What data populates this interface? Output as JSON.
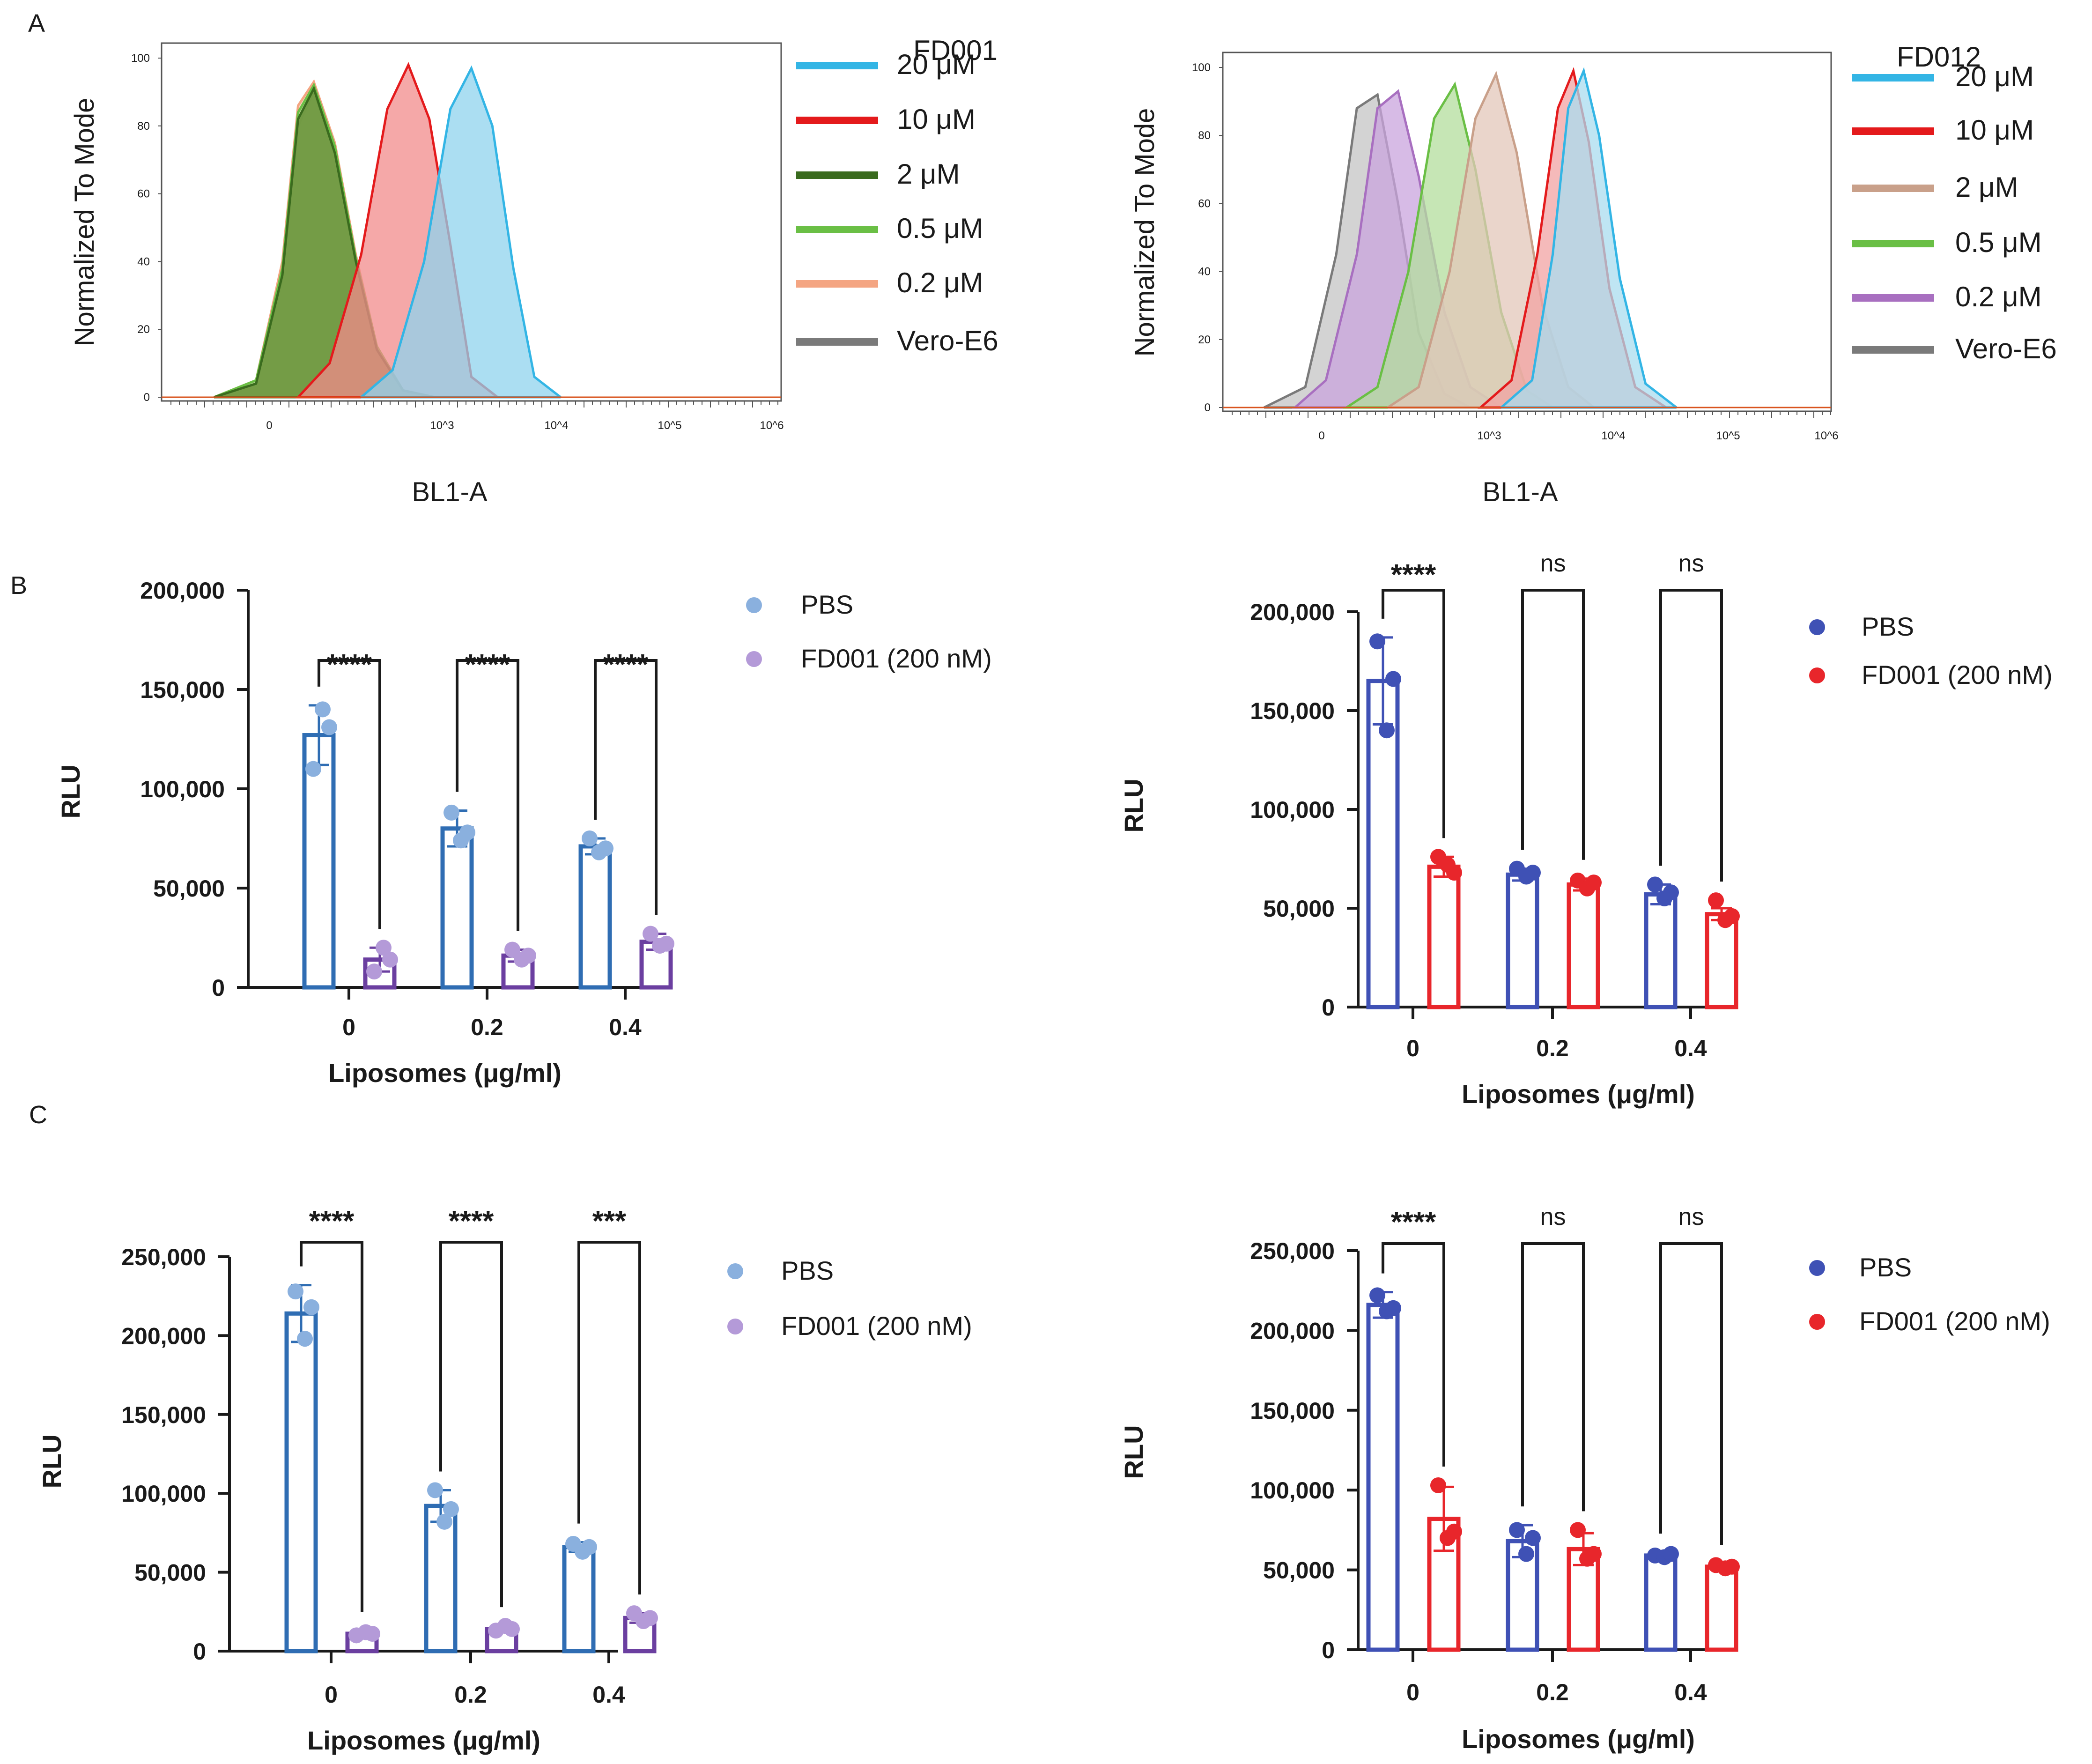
{
  "panel_labels": [
    "A",
    "B",
    "C"
  ],
  "chart_data": [
    {
      "id": "A-left",
      "type": "area",
      "title": "FD001",
      "xlabel": "BL1-A",
      "ylabel": "Normalized To Mode",
      "xscale": "biexponential",
      "xticks": [
        "0",
        "10^3",
        "10^4",
        "10^5",
        "10^6"
      ],
      "yticks": [
        "0",
        "20",
        "40",
        "60",
        "80",
        "100"
      ],
      "ylim": [
        0,
        100
      ],
      "series": [
        {
          "name": "Vero-E6",
          "color": "#7a7a7a",
          "fill": "#b8b8b8",
          "x": [
            -0.8,
            -0.4,
            -0.15,
            0.0,
            0.15,
            0.35,
            0.55,
            0.75,
            1.0,
            1.3
          ],
          "y": [
            0,
            4,
            35,
            80,
            90,
            72,
            40,
            14,
            2,
            0
          ]
        },
        {
          "name": "0.2 μM",
          "color": "#f4a582",
          "fill": "#f7c9a8",
          "x": [
            -0.8,
            -0.4,
            -0.15,
            0.0,
            0.15,
            0.35,
            0.55,
            0.75,
            1.0,
            1.3
          ],
          "y": [
            0,
            5,
            40,
            86,
            93,
            75,
            42,
            15,
            2,
            0
          ]
        },
        {
          "name": "0.5 μM",
          "color": "#6abf45",
          "fill": "#9fd483",
          "x": [
            -0.8,
            -0.4,
            -0.15,
            0.0,
            0.15,
            0.35,
            0.55,
            0.75,
            1.0,
            1.3
          ],
          "y": [
            0,
            5,
            38,
            84,
            92,
            74,
            41,
            15,
            2,
            0
          ]
        },
        {
          "name": "2 μM",
          "color": "#3a6b1e",
          "fill": "#5f8a2e",
          "x": [
            -0.8,
            -0.4,
            -0.15,
            0.0,
            0.15,
            0.35,
            0.55,
            0.75,
            1.0,
            1.3
          ],
          "y": [
            0,
            4,
            36,
            82,
            91,
            72,
            40,
            14,
            2,
            0
          ]
        },
        {
          "name": "10 μM",
          "color": "#e41a1c",
          "fill": "#f28b8b",
          "x": [
            0.0,
            0.3,
            0.6,
            0.85,
            1.05,
            1.25,
            1.45,
            1.65,
            1.9
          ],
          "y": [
            0,
            10,
            42,
            85,
            98,
            82,
            45,
            6,
            0
          ]
        },
        {
          "name": "20 μM",
          "color": "#33b5e5",
          "fill": "#8fd3ee",
          "x": [
            0.6,
            0.9,
            1.2,
            1.45,
            1.65,
            1.85,
            2.05,
            2.25,
            2.5
          ],
          "y": [
            0,
            8,
            40,
            85,
            97,
            80,
            38,
            6,
            0
          ]
        }
      ]
    },
    {
      "id": "A-right",
      "type": "area",
      "title": "FD012",
      "xlabel": "BL1-A",
      "ylabel": "Normalized To Mode",
      "xscale": "biexponential",
      "xticks": [
        "0",
        "10^3",
        "10^4",
        "10^5",
        "10^6"
      ],
      "yticks": [
        "0",
        "20",
        "40",
        "60",
        "80",
        "100"
      ],
      "ylim": [
        0,
        100
      ],
      "series": [
        {
          "name": "Vero-E6",
          "color": "#7a7a7a",
          "fill": "#c4c4c4",
          "x": [
            -0.9,
            -0.5,
            -0.2,
            0.0,
            0.2,
            0.4,
            0.6,
            0.85,
            1.1
          ],
          "y": [
            0,
            6,
            45,
            88,
            92,
            60,
            22,
            4,
            0
          ]
        },
        {
          "name": "0.2 μM",
          "color": "#a86fc0",
          "fill": "#c9a4dd",
          "x": [
            -0.6,
            -0.3,
            0.0,
            0.2,
            0.4,
            0.6,
            0.85,
            1.1,
            1.4
          ],
          "y": [
            0,
            8,
            45,
            88,
            93,
            68,
            28,
            6,
            0
          ]
        },
        {
          "name": "0.5 μM",
          "color": "#6abf45",
          "fill": "#b3dd9c",
          "x": [
            -0.1,
            0.2,
            0.5,
            0.75,
            0.95,
            1.15,
            1.4,
            1.65,
            1.9
          ],
          "y": [
            0,
            6,
            40,
            85,
            95,
            70,
            28,
            5,
            0
          ]
        },
        {
          "name": "2 μM",
          "color": "#c9a08a",
          "fill": "#e3c7ba",
          "x": [
            0.3,
            0.6,
            0.9,
            1.15,
            1.35,
            1.55,
            1.8,
            2.05,
            2.3
          ],
          "y": [
            0,
            6,
            40,
            85,
            98,
            75,
            30,
            6,
            0
          ]
        },
        {
          "name": "10 μM",
          "color": "#e41a1c",
          "fill": "#f2a3a3",
          "x": [
            1.2,
            1.5,
            1.75,
            1.95,
            2.1,
            2.25,
            2.45,
            2.7,
            3.0
          ],
          "y": [
            0,
            8,
            45,
            88,
            99,
            78,
            35,
            6,
            0
          ]
        },
        {
          "name": "20 μM",
          "color": "#33b5e5",
          "fill": "#aadcef",
          "x": [
            1.4,
            1.7,
            1.9,
            2.05,
            2.2,
            2.35,
            2.55,
            2.8,
            3.1
          ],
          "y": [
            0,
            8,
            45,
            88,
            99,
            80,
            38,
            7,
            0
          ]
        }
      ]
    },
    {
      "id": "B-left",
      "type": "bar",
      "xlabel": "Liposomes (μg/ml)",
      "ylabel": "RLU",
      "categories": [
        "0",
        "0.2",
        "0.4"
      ],
      "ylim": [
        0,
        200000
      ],
      "yticks": [
        "0",
        "50,000",
        "100,000",
        "150,000",
        "200,000"
      ],
      "significance": [
        "****",
        "****",
        "****"
      ],
      "series": [
        {
          "name": "PBS",
          "color": "#2f6db3",
          "marker": "#8ab0de",
          "values": [
            127000,
            80000,
            71000
          ],
          "sd": [
            15000,
            9000,
            4000
          ],
          "points": [
            [
              110000,
              140000,
              131000
            ],
            [
              88000,
              74000,
              78000
            ],
            [
              75000,
              68000,
              70000
            ]
          ]
        },
        {
          "name": "FD001 (200 nM)",
          "color": "#6b3fa0",
          "marker": "#b49ad8",
          "values": [
            14000,
            16000,
            23000
          ],
          "sd": [
            6000,
            3000,
            4000
          ],
          "points": [
            [
              8000,
              20000,
              14000
            ],
            [
              19000,
              14000,
              16000
            ],
            [
              27000,
              21000,
              22000
            ]
          ]
        }
      ]
    },
    {
      "id": "B-right",
      "type": "bar",
      "xlabel": "Liposomes (μg/ml)",
      "ylabel": "RLU",
      "categories": [
        "0",
        "0.2",
        "0.4"
      ],
      "ylim": [
        0,
        200000
      ],
      "yticks": [
        "0",
        "50,000",
        "100,000",
        "150,000",
        "200,000"
      ],
      "significance": [
        "****",
        "ns",
        "ns"
      ],
      "series": [
        {
          "name": "PBS",
          "color": "#3f51b5",
          "marker": "#3f51b5",
          "values": [
            165000,
            67000,
            57000
          ],
          "sd": [
            22000,
            3000,
            5000
          ],
          "points": [
            [
              185000,
              140000,
              166000
            ],
            [
              70000,
              66000,
              68000
            ],
            [
              62000,
              55000,
              58000
            ]
          ]
        },
        {
          "name": "FD001 (200 nM)",
          "color": "#e8262b",
          "marker": "#e8262b",
          "values": [
            71000,
            62000,
            47000
          ],
          "sd": [
            5000,
            3000,
            3000
          ],
          "points": [
            [
              76000,
              72000,
              68000
            ],
            [
              64000,
              60000,
              63000
            ],
            [
              54000,
              44000,
              46000
            ]
          ]
        }
      ]
    },
    {
      "id": "C-left",
      "type": "bar",
      "xlabel": "Liposomes (μg/ml)",
      "ylabel": "RLU",
      "categories": [
        "0",
        "0.2",
        "0.4"
      ],
      "ylim": [
        0,
        250000
      ],
      "yticks": [
        "0",
        "50,000",
        "100,000",
        "150,000",
        "200,000",
        "250,000"
      ],
      "significance": [
        "****",
        "****",
        "***"
      ],
      "series": [
        {
          "name": "PBS",
          "color": "#2f6db3",
          "marker": "#8ab0de",
          "values": [
            214000,
            92000,
            66000
          ],
          "sd": [
            18000,
            10000,
            3000
          ],
          "points": [
            [
              228000,
              198000,
              218000
            ],
            [
              102000,
              82000,
              90000
            ],
            [
              68000,
              63000,
              66000
            ]
          ]
        },
        {
          "name": "FD001 (200 nM)",
          "color": "#6b3fa0",
          "marker": "#b49ad8",
          "values": [
            11000,
            14000,
            21000
          ],
          "sd": [
            2000,
            2000,
            3000
          ],
          "points": [
            [
              10000,
              12000,
              11000
            ],
            [
              13000,
              16000,
              14000
            ],
            [
              24000,
              19000,
              21000
            ]
          ]
        }
      ]
    },
    {
      "id": "C-right",
      "type": "bar",
      "xlabel": "Liposomes (μg/ml)",
      "ylabel": "RLU",
      "categories": [
        "0",
        "0.2",
        "0.4"
      ],
      "ylim": [
        0,
        250000
      ],
      "yticks": [
        "0",
        "50,000",
        "100,000",
        "150,000",
        "200,000",
        "250,000"
      ],
      "significance": [
        "****",
        "ns",
        "ns"
      ],
      "series": [
        {
          "name": "PBS",
          "color": "#3f51b5",
          "marker": "#3f51b5",
          "values": [
            216000,
            68000,
            59000
          ],
          "sd": [
            8000,
            10000,
            2000
          ],
          "points": [
            [
              222000,
              212000,
              214000
            ],
            [
              75000,
              60000,
              70000
            ],
            [
              59000,
              58000,
              60000
            ]
          ]
        },
        {
          "name": "FD001 (200 nM)",
          "color": "#e8262b",
          "marker": "#e8262b",
          "values": [
            82000,
            63000,
            52000
          ],
          "sd": [
            20000,
            10000,
            2000
          ],
          "points": [
            [
              103000,
              70000,
              74000
            ],
            [
              75000,
              57000,
              60000
            ],
            [
              53000,
              51000,
              52000
            ]
          ]
        }
      ]
    }
  ]
}
